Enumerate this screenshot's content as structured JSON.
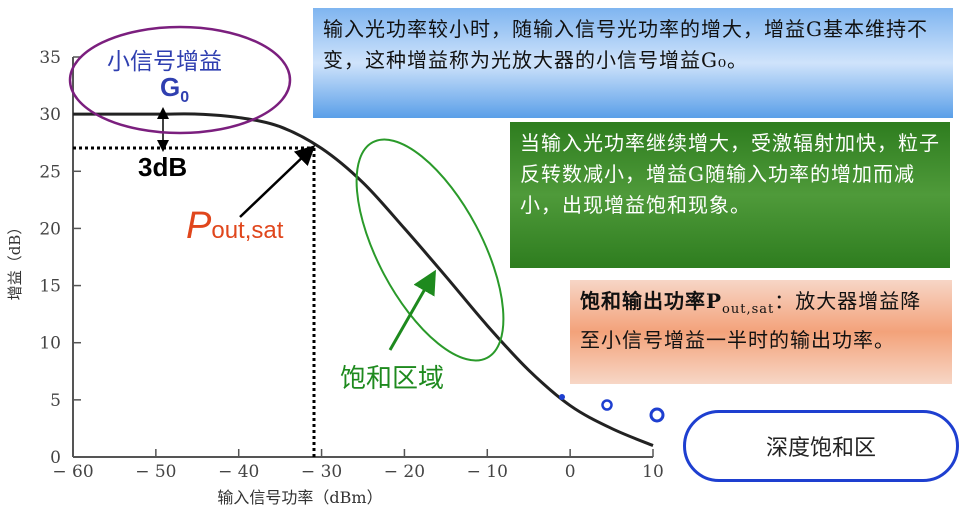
{
  "chart_data": {
    "type": "line",
    "xlabel": "输入信号功率（dBm）",
    "ylabel": "增益（dB）",
    "xlim": [
      -60,
      10
    ],
    "ylim": [
      0,
      35
    ],
    "xticks": [
      "-60",
      "-50",
      "-40",
      "-30",
      "-20",
      "-10",
      "0",
      "10"
    ],
    "yticks": [
      "0",
      "5",
      "10",
      "15",
      "20",
      "25",
      "30",
      "35"
    ],
    "x": [
      -60,
      -50,
      -45,
      -40,
      -35,
      -30,
      -25,
      -20,
      -15,
      -10,
      -5,
      0,
      5,
      10
    ],
    "y": [
      30,
      30,
      30,
      29.7,
      28.9,
      27,
      24,
      20,
      15.8,
      11.5,
      7.6,
      4.5,
      2.5,
      1
    ],
    "sat_point": {
      "x": -30,
      "y": 27
    }
  },
  "annotations": {
    "small_signal_title": "小信号增益",
    "g0": "G",
    "g0_sub": "0",
    "db3": "3dB",
    "pout": "P",
    "pout_sub": "out,sat",
    "saturation_region": "饱和区域",
    "deep_saturation": "深度饱和区"
  },
  "boxes": {
    "blue": "输入光功率较小时，随输入信号光功率的增大，增益G基本维持不变，这种增益称为光放大器的小信号增益G₀。",
    "green": "当输入光功率继续增大，受激辐射加快，粒子反转数减小，增益G随输入功率的增加而减小，出现增益饱和现象。",
    "orange_title": "饱和输出功率P",
    "orange_sub": "out,sat",
    "orange_body": "：放大器增益降至小信号增益一半时的输出功率。"
  },
  "colors": {
    "curve": "#222222",
    "ellipse1": "#7b1f7e",
    "ellipse2": "#2a9a2a",
    "arrow_green": "#1e8a1e",
    "pout": "#e0461c",
    "g0": "#2f3fb0"
  }
}
